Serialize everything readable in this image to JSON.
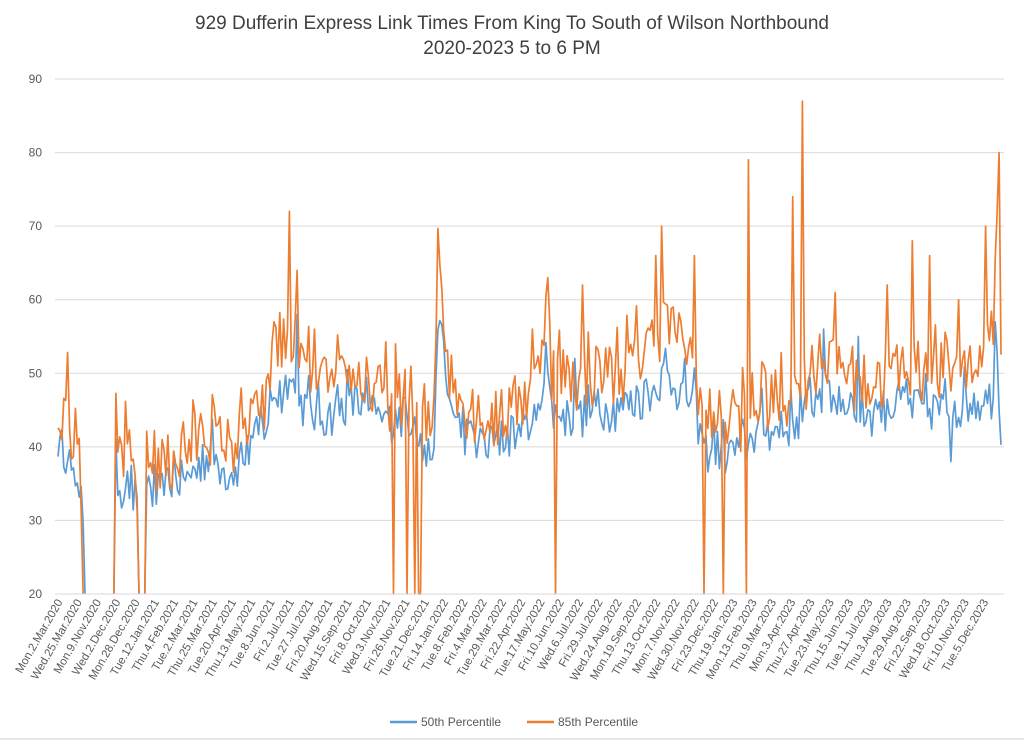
{
  "chart_data": {
    "type": "line",
    "title": "929 Dufferin Express Link Times From King To South of Wilson Northbound",
    "subtitle": "2020-2023 5 to 6 PM",
    "xlabel": "",
    "ylabel": "",
    "ylim": [
      20,
      90
    ],
    "yticks": [
      "20",
      "30",
      "40",
      "50",
      "60",
      "70",
      "80",
      "90"
    ],
    "grid": true,
    "legend_position": "bottom",
    "x_tick_labels": [
      "Mon.2.Mar.2020",
      "Wed.25.Mar.2020",
      "Mon.9.Nov.2020",
      "Wed.2.Dec.2020",
      "Mon.28.Dec.2020",
      "Tue.12.Jan.2021",
      "Thu.4.Feb.2021",
      "Tue.2.Mar.2021",
      "Thu.25.Mar.2021",
      "Tue.20.Apr.2021",
      "Thu.13.May.2021",
      "Tue.8.Jun.2021",
      "Fri.2.Jul.2021",
      "Tue.27.Jul.2021",
      "Fri.20.Aug.2021",
      "Wed.15.Sep.2021",
      "Fri.8.Oct.2021",
      "Wed.3.Nov.2021",
      "Fri.26.Nov.2021",
      "Tue.21.Dec.2021",
      "Fri.14.Jan.2022",
      "Tue.8.Feb.2022",
      "Fri.4.Mar.2022",
      "Tue.29.Mar.2022",
      "Fri.22.Apr.2022",
      "Tue.17.May.2022",
      "Fri.10.Jun.2022",
      "Wed.6.Jul.2022",
      "Fri.29.Jul.2022",
      "Wed.24.Aug.2022",
      "Mon.19.Sep.2022",
      "Thu.13.Oct.2022",
      "Mon.7.Nov.2022",
      "Wed.30.Nov.2022",
      "Fri.23.Dec.2022",
      "Thu.19.Jan.2023",
      "Mon.13.Feb.2023",
      "Thu.9.Mar.2023",
      "Mon.3.Apr.2023",
      "Thu.27.Apr.2023",
      "Tue.23.May.2023",
      "Thu.15.Jun.2023",
      "Tue.11.Jul.2023",
      "Thu.3.Aug.2023",
      "Tue.29.Aug.2023",
      "Fri.22.Sep.2023",
      "Wed.18.Oct.2023",
      "Fri.10.Nov.2023",
      "Tue.5.Dec.2023"
    ],
    "x_label_index": [
      0,
      10,
      20,
      30,
      40,
      50,
      60,
      70,
      80,
      90,
      100,
      110,
      120,
      130,
      140,
      150,
      160,
      170,
      180,
      190,
      200,
      210,
      220,
      230,
      240,
      250,
      260,
      270,
      280,
      290,
      300,
      310,
      320,
      330,
      340,
      350,
      360,
      370,
      380,
      390,
      400,
      410,
      420,
      430,
      440,
      450,
      460,
      470,
      480
    ],
    "point_count": 490,
    "series": [
      {
        "name": "50th Percentile",
        "color": "#5b9bd5",
        "anchors": [
          [
            0,
            39
          ],
          [
            3,
            40
          ],
          [
            6,
            38
          ],
          [
            9,
            33
          ],
          [
            12,
            36
          ],
          [
            14,
            20
          ],
          [
            15,
            null
          ],
          [
            28,
            null
          ],
          [
            29,
            20
          ],
          [
            30,
            36
          ],
          [
            34,
            34
          ],
          [
            38,
            35
          ],
          [
            40,
            31
          ],
          [
            41,
            30.5
          ],
          [
            42,
            20
          ],
          [
            43,
            null
          ],
          [
            44,
            null
          ],
          [
            45,
            20
          ],
          [
            46,
            36
          ],
          [
            50,
            33
          ],
          [
            55,
            34
          ],
          [
            60,
            36
          ],
          [
            65,
            35
          ],
          [
            70,
            36
          ],
          [
            75,
            38
          ],
          [
            80,
            39
          ],
          [
            85,
            37
          ],
          [
            90,
            36
          ],
          [
            95,
            38
          ],
          [
            100,
            40
          ],
          [
            105,
            42
          ],
          [
            110,
            44
          ],
          [
            112,
            48
          ],
          [
            115,
            46
          ],
          [
            120,
            50
          ],
          [
            125,
            46
          ],
          [
            130,
            45
          ],
          [
            135,
            44
          ],
          [
            140,
            44
          ],
          [
            145,
            45
          ],
          [
            150,
            46
          ],
          [
            155,
            46
          ],
          [
            160,
            45
          ],
          [
            165,
            44
          ],
          [
            170,
            43
          ],
          [
            175,
            44
          ],
          [
            180,
            44
          ],
          [
            185,
            44
          ],
          [
            190,
            38
          ],
          [
            195,
            40
          ],
          [
            198,
            60
          ],
          [
            200,
            50
          ],
          [
            205,
            44
          ],
          [
            210,
            42
          ],
          [
            215,
            41
          ],
          [
            220,
            40
          ],
          [
            225,
            40
          ],
          [
            230,
            41
          ],
          [
            240,
            42
          ],
          [
            250,
            44
          ],
          [
            253,
            55
          ],
          [
            255,
            45
          ],
          [
            260,
            44
          ],
          [
            270,
            44
          ],
          [
            280,
            45
          ],
          [
            290,
            45
          ],
          [
            300,
            46
          ],
          [
            310,
            48
          ],
          [
            315,
            50
          ],
          [
            320,
            48
          ],
          [
            325,
            47
          ],
          [
            330,
            46
          ],
          [
            335,
            39
          ],
          [
            340,
            40
          ],
          [
            345,
            39
          ],
          [
            350,
            39
          ],
          [
            355,
            40
          ],
          [
            360,
            41
          ],
          [
            365,
            43
          ],
          [
            370,
            42
          ],
          [
            375,
            42
          ],
          [
            380,
            43
          ],
          [
            385,
            44
          ],
          [
            390,
            46
          ],
          [
            395,
            47
          ],
          [
            400,
            47
          ],
          [
            405,
            46
          ],
          [
            410,
            46
          ],
          [
            415,
            45
          ],
          [
            420,
            44
          ],
          [
            425,
            45
          ],
          [
            430,
            45
          ],
          [
            435,
            46
          ],
          [
            440,
            46
          ],
          [
            445,
            45
          ],
          [
            450,
            45
          ],
          [
            455,
            45
          ],
          [
            460,
            45
          ],
          [
            465,
            45
          ],
          [
            470,
            46
          ],
          [
            475,
            46
          ],
          [
            480,
            46
          ],
          [
            485,
            47
          ],
          [
            487,
            52
          ],
          [
            489,
            43
          ]
        ],
        "spikes": [
          [
            124,
            58
          ],
          [
            268,
            52
          ],
          [
            397,
            56
          ],
          [
            415,
            55
          ],
          [
            463,
            38
          ],
          [
            486,
            57
          ]
        ]
      },
      {
        "name": "85th Percentile",
        "color": "#ed7d31",
        "anchors": [
          [
            0,
            41
          ],
          [
            2,
            45
          ],
          [
            4,
            50
          ],
          [
            6,
            42
          ],
          [
            9,
            41
          ],
          [
            11,
            37
          ],
          [
            13,
            20
          ],
          [
            15,
            null
          ],
          [
            28,
            null
          ],
          [
            29,
            20
          ],
          [
            30,
            40
          ],
          [
            34,
            39
          ],
          [
            38,
            38
          ],
          [
            40,
            36
          ],
          [
            41,
            33
          ],
          [
            42,
            20
          ],
          [
            43,
            null
          ],
          [
            44,
            null
          ],
          [
            45,
            20
          ],
          [
            46,
            38
          ],
          [
            50,
            38
          ],
          [
            55,
            37
          ],
          [
            60,
            38
          ],
          [
            65,
            39
          ],
          [
            70,
            40
          ],
          [
            75,
            42
          ],
          [
            80,
            42
          ],
          [
            85,
            40
          ],
          [
            90,
            40
          ],
          [
            95,
            41
          ],
          [
            100,
            43
          ],
          [
            105,
            44
          ],
          [
            110,
            47
          ],
          [
            112,
            58
          ],
          [
            115,
            52
          ],
          [
            120,
            56
          ],
          [
            125,
            52
          ],
          [
            130,
            50
          ],
          [
            135,
            49
          ],
          [
            140,
            48
          ],
          [
            145,
            48
          ],
          [
            150,
            49
          ],
          [
            155,
            49
          ],
          [
            160,
            48
          ],
          [
            165,
            47
          ],
          [
            170,
            47
          ],
          [
            175,
            46
          ],
          [
            180,
            46
          ],
          [
            185,
            47
          ],
          [
            190,
            42
          ],
          [
            195,
            43
          ],
          [
            197,
            72
          ],
          [
            200,
            56
          ],
          [
            205,
            47
          ],
          [
            210,
            46
          ],
          [
            215,
            45
          ],
          [
            220,
            44
          ],
          [
            225,
            43
          ],
          [
            230,
            44
          ],
          [
            240,
            46
          ],
          [
            250,
            50
          ],
          [
            253,
            62
          ],
          [
            255,
            51
          ],
          [
            260,
            50
          ],
          [
            270,
            49
          ],
          [
            280,
            50
          ],
          [
            290,
            50
          ],
          [
            300,
            52
          ],
          [
            310,
            55
          ],
          [
            315,
            57
          ],
          [
            320,
            55
          ],
          [
            325,
            53
          ],
          [
            330,
            52
          ],
          [
            335,
            44
          ],
          [
            340,
            44
          ],
          [
            345,
            43
          ],
          [
            350,
            43
          ],
          [
            355,
            44
          ],
          [
            360,
            45
          ],
          [
            365,
            47
          ],
          [
            370,
            46
          ],
          [
            375,
            46
          ],
          [
            380,
            47
          ],
          [
            385,
            48
          ],
          [
            390,
            50
          ],
          [
            395,
            52
          ],
          [
            400,
            52
          ],
          [
            405,
            51
          ],
          [
            410,
            50
          ],
          [
            415,
            49
          ],
          [
            420,
            48
          ],
          [
            425,
            49
          ],
          [
            430,
            49
          ],
          [
            435,
            50
          ],
          [
            440,
            51
          ],
          [
            445,
            50
          ],
          [
            450,
            50
          ],
          [
            455,
            50
          ],
          [
            460,
            50
          ],
          [
            465,
            50
          ],
          [
            470,
            51
          ],
          [
            475,
            51
          ],
          [
            480,
            51
          ],
          [
            485,
            55
          ],
          [
            488,
            80
          ],
          [
            489,
            50
          ]
        ],
        "spikes": [
          [
            68,
            41
          ],
          [
            120,
            72
          ],
          [
            124,
            64
          ],
          [
            133,
            56
          ],
          [
            175,
            54
          ],
          [
            246,
            56
          ],
          [
            254,
            63
          ],
          [
            272,
            62
          ],
          [
            310,
            66
          ],
          [
            313,
            70
          ],
          [
            330,
            66
          ],
          [
            345,
            47
          ],
          [
            351,
            46
          ],
          [
            358,
            79
          ],
          [
            381,
            74
          ],
          [
            386,
            87
          ],
          [
            403,
            61
          ],
          [
            430,
            62
          ],
          [
            443,
            68
          ],
          [
            452,
            66
          ],
          [
            467,
            60
          ],
          [
            481,
            70
          ],
          [
            488,
            80
          ]
        ],
        "drops": [
          [
            174,
            20
          ],
          [
            181,
            20
          ],
          [
            185,
            20
          ],
          [
            187,
            20
          ],
          [
            188,
            20
          ],
          [
            258,
            20
          ],
          [
            335,
            20
          ],
          [
            345,
            20
          ],
          [
            357,
            20
          ]
        ]
      }
    ]
  }
}
